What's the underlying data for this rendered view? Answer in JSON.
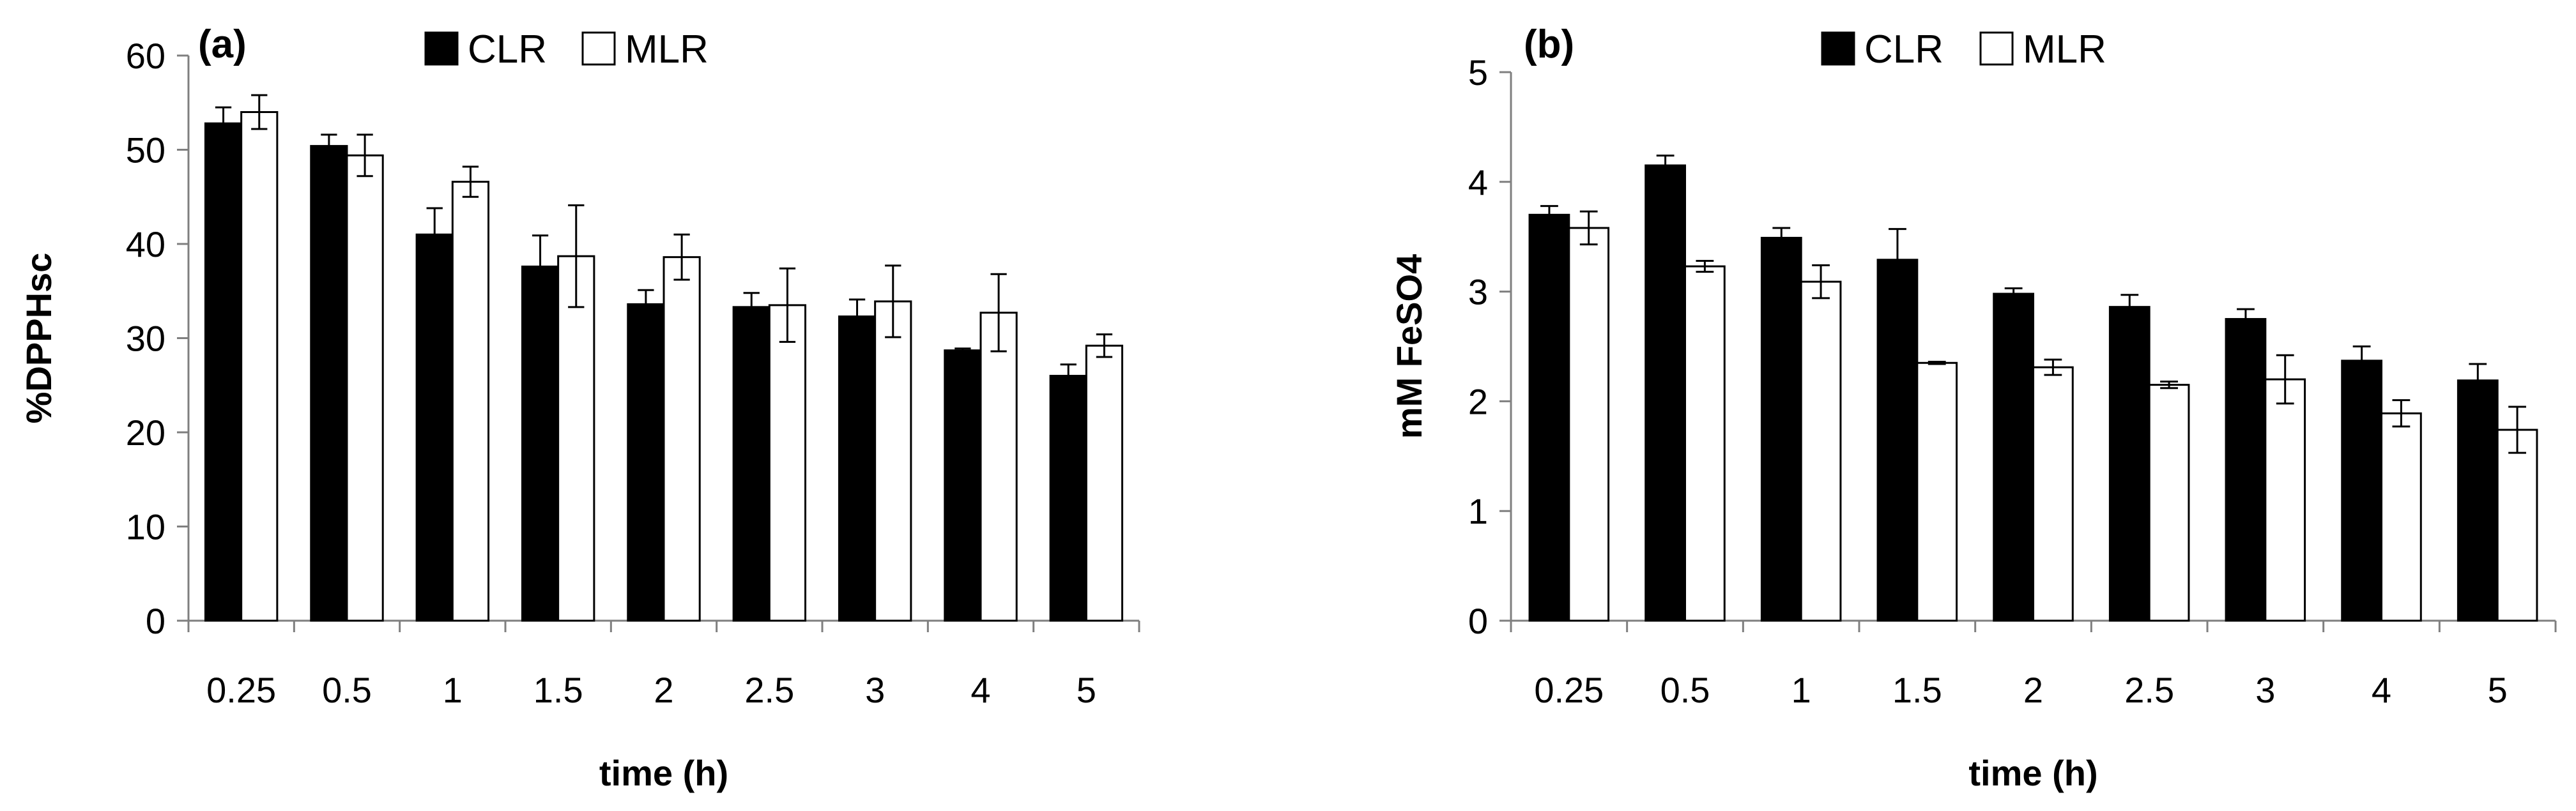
{
  "colors": {
    "clr": "#000000",
    "mlr": "#ffffff",
    "outline": "#000000",
    "axis": "#7f7f7f"
  },
  "chart_data": [
    {
      "type": "bar",
      "panel_label": "(a)",
      "title": "",
      "xlabel": "time (h)",
      "ylabel": "%DPPHsc",
      "ylim": [
        0,
        60
      ],
      "yticks": [
        "0",
        "10",
        "20",
        "30",
        "40",
        "50",
        "60"
      ],
      "categories": [
        "0.25",
        "0.5",
        "1",
        "1.5",
        "2",
        "2.5",
        "3",
        "4",
        "5"
      ],
      "legend": {
        "placement": "top-center",
        "entries": [
          "CLR",
          "MLR"
        ]
      },
      "series": [
        {
          "name": "CLR",
          "values": [
            52.8,
            50.4,
            41.0,
            37.6,
            33.6,
            33.3,
            32.3,
            28.7,
            26.0
          ],
          "errors": [
            1.7,
            1.2,
            2.8,
            3.3,
            1.5,
            1.5,
            1.8,
            0.2,
            1.2
          ]
        },
        {
          "name": "MLR",
          "values": [
            54.0,
            49.4,
            46.6,
            38.7,
            38.6,
            33.5,
            33.9,
            32.7,
            29.2
          ],
          "errors": [
            1.8,
            2.2,
            1.6,
            5.4,
            2.4,
            3.9,
            3.8,
            4.1,
            1.2
          ]
        }
      ]
    },
    {
      "type": "bar",
      "panel_label": "(b)",
      "title": "",
      "xlabel": "time (h)",
      "ylabel": "mM FeSO4",
      "ylim": [
        0,
        5
      ],
      "yticks": [
        "0",
        "1",
        "2",
        "3",
        "4",
        "5"
      ],
      "categories": [
        "0.25",
        "0.5",
        "1",
        "1.5",
        "2",
        "2.5",
        "3",
        "4",
        "5"
      ],
      "legend": {
        "placement": "top-center",
        "entries": [
          "CLR",
          "MLR"
        ]
      },
      "series": [
        {
          "name": "CLR",
          "values": [
            3.7,
            4.15,
            3.49,
            3.29,
            2.98,
            2.86,
            2.75,
            2.37,
            2.19
          ],
          "errors": [
            0.08,
            0.09,
            0.09,
            0.28,
            0.05,
            0.11,
            0.09,
            0.13,
            0.15
          ]
        },
        {
          "name": "MLR",
          "values": [
            3.58,
            3.23,
            3.09,
            2.35,
            2.31,
            2.15,
            2.2,
            1.89,
            1.74
          ],
          "errors": [
            0.15,
            0.05,
            0.15,
            0.01,
            0.07,
            0.03,
            0.22,
            0.12,
            0.21
          ]
        }
      ]
    }
  ]
}
